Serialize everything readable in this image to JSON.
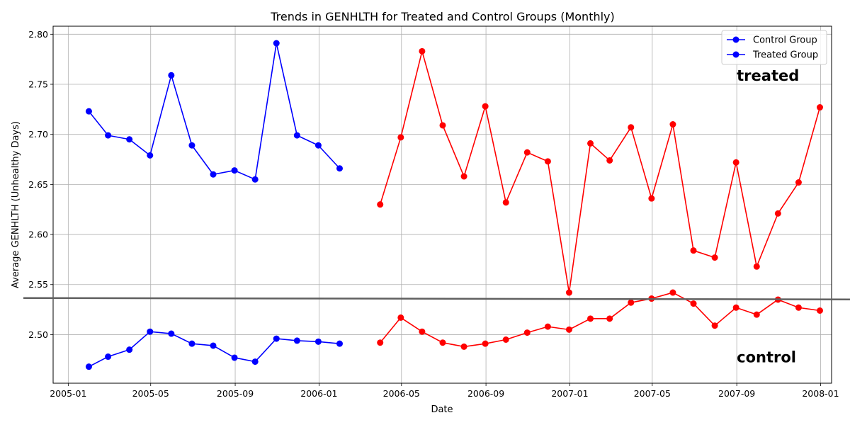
{
  "chart_data": {
    "type": "line",
    "title": "Trends in GENHLTH for Treated and Control Groups (Monthly)",
    "xlabel": "Date",
    "ylabel": "Average GENHLTH (Unhealthy Days)",
    "xlim": [
      "2004-12-10",
      "2008-01-17"
    ],
    "ylim": [
      2.4515,
      2.808
    ],
    "x_ticks": [
      "2005-01",
      "2005-05",
      "2005-09",
      "2006-01",
      "2006-05",
      "2006-09",
      "2007-01",
      "2007-05",
      "2007-09",
      "2008-01"
    ],
    "y_ticks": [
      "2.50",
      "2.55",
      "2.60",
      "2.65",
      "2.70",
      "2.75",
      "2.80"
    ],
    "grid": true,
    "legend_position": "top-right",
    "legend": [
      {
        "label": "Control Group",
        "color": "#0000ff"
      },
      {
        "label": "Treated Group",
        "color": "#0000ff"
      }
    ],
    "series": [
      {
        "name": "Control Group",
        "color": "#0000ff",
        "x": [
          "2005-01-31",
          "2005-02-28",
          "2005-03-31",
          "2005-04-30",
          "2005-05-31",
          "2005-06-30",
          "2005-07-31",
          "2005-08-31",
          "2005-09-30",
          "2005-10-31",
          "2005-11-30",
          "2005-12-31",
          "2006-01-31"
        ],
        "y": [
          2.468,
          2.478,
          2.485,
          2.503,
          2.501,
          2.491,
          2.489,
          2.477,
          2.473,
          2.496,
          2.494,
          2.493,
          2.491
        ]
      },
      {
        "name": "Treated Group",
        "color": "#0000ff",
        "x": [
          "2005-01-31",
          "2005-02-28",
          "2005-03-31",
          "2005-04-30",
          "2005-05-31",
          "2005-06-30",
          "2005-07-31",
          "2005-08-31",
          "2005-09-30",
          "2005-10-31",
          "2005-11-30",
          "2005-12-31",
          "2006-01-31"
        ],
        "y": [
          2.723,
          2.699,
          2.695,
          2.679,
          2.759,
          2.689,
          2.66,
          2.664,
          2.655,
          2.791,
          2.699,
          2.689,
          2.666
        ]
      },
      {
        "color": "#ff0000",
        "x": [
          "2006-03-31",
          "2006-04-30",
          "2006-05-31",
          "2006-06-30",
          "2006-07-31",
          "2006-08-31",
          "2006-09-30",
          "2006-10-31",
          "2006-11-30",
          "2006-12-31",
          "2007-01-31",
          "2007-02-28",
          "2007-03-31",
          "2007-04-30",
          "2007-05-31",
          "2007-06-30",
          "2007-07-31",
          "2007-08-31",
          "2007-09-30",
          "2007-10-31",
          "2007-11-30",
          "2007-12-31"
        ],
        "y": [
          2.492,
          2.517,
          2.503,
          2.492,
          2.488,
          2.491,
          2.495,
          2.502,
          2.508,
          2.505,
          2.516,
          2.516,
          2.532,
          2.536,
          2.542,
          2.531,
          2.509,
          2.527,
          2.52,
          2.535,
          2.527,
          2.524
        ]
      },
      {
        "color": "#ff0000",
        "x": [
          "2006-03-31",
          "2006-04-30",
          "2006-05-31",
          "2006-06-30",
          "2006-07-31",
          "2006-08-31",
          "2006-09-30",
          "2006-10-31",
          "2006-11-30",
          "2006-12-31",
          "2007-01-31",
          "2007-02-28",
          "2007-03-31",
          "2007-04-30",
          "2007-05-31",
          "2007-06-30",
          "2007-07-31",
          "2007-08-31",
          "2007-09-30",
          "2007-10-31",
          "2007-11-30",
          "2007-12-31"
        ],
        "y": [
          2.63,
          2.697,
          2.783,
          2.709,
          2.658,
          2.728,
          2.632,
          2.682,
          2.673,
          2.542,
          2.691,
          2.674,
          2.707,
          2.636,
          2.71,
          2.584,
          2.577,
          2.672,
          2.568,
          2.621,
          2.652,
          2.727
        ]
      }
    ],
    "reference_line": {
      "y": 2.536,
      "color": "#606060"
    },
    "annotations": [
      {
        "text": "treated",
        "x": "2007-09-01",
        "y": 2.7535
      },
      {
        "text": "control",
        "x": "2007-09-01",
        "y": 2.4725
      }
    ]
  }
}
